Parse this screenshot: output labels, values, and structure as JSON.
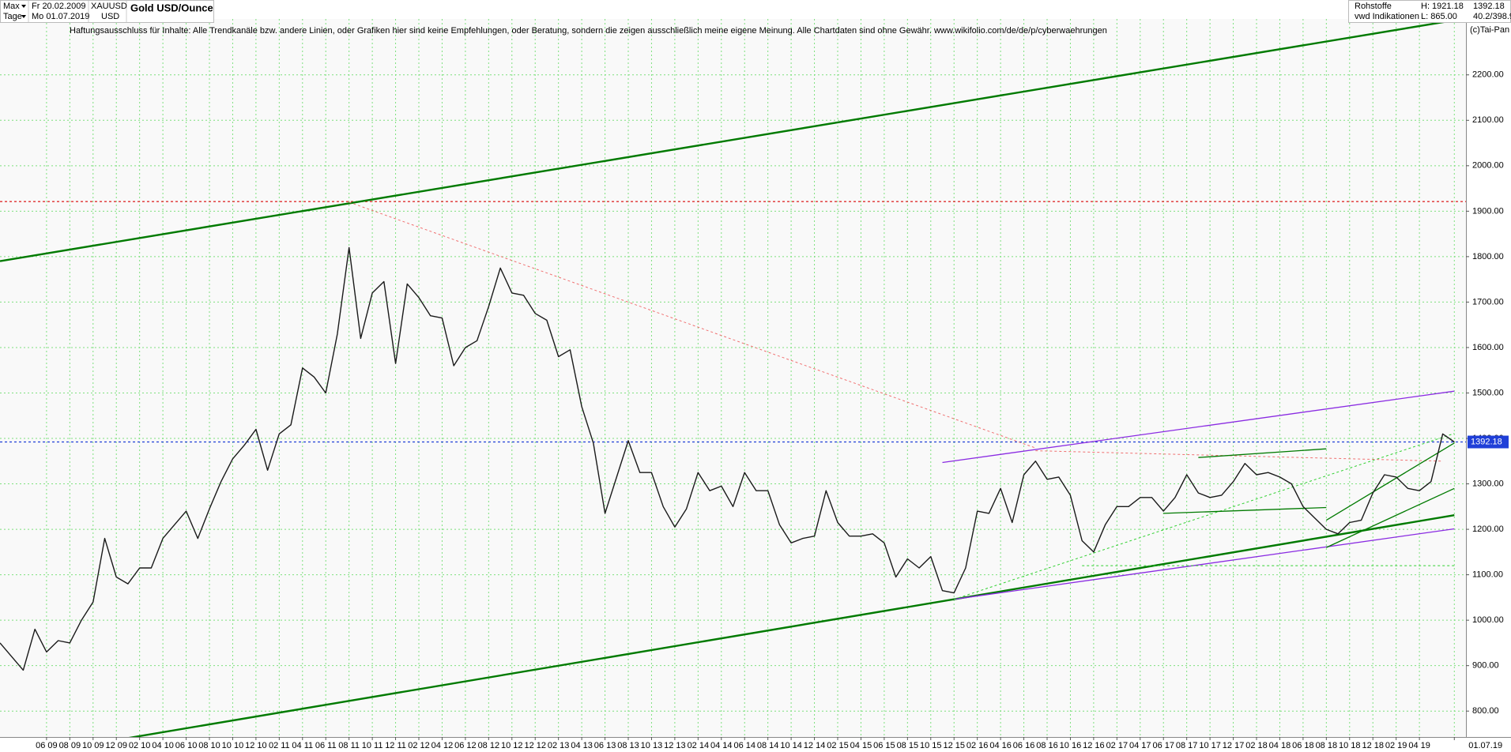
{
  "header": {
    "range": "Max",
    "from": "Fr 20.02.2009",
    "symbol": "XAUUSD",
    "period": "Tage",
    "to": "Mo 01.07.2019",
    "currency": "USD",
    "category": "Rohstoffe",
    "high": "H: 1921.18",
    "source": "vwd Indikationen",
    "low": "L: 865.00",
    "stats": "40.2/398.9",
    "copyright": "(c)Tai-Pan",
    "disclaimer": "Haftungsausschluss für Inhalte: Alle Trendkanäle bzw. andere Linien, oder Grafiken hier sind keine Empfehlungen, oder Beratung, sondern die zeigen ausschließlich meine eigene Meinung. Alle Chartdaten sind ohne Gewähr.  www.wikifolio.com/de/de/p/cyberwaehrungen"
  },
  "chart_data": {
    "type": "line",
    "title": "Gold USD/Ounce",
    "x": [
      "2009-02",
      "2009-03",
      "2009-04",
      "2009-05",
      "2009-06",
      "2009-07",
      "2009-08",
      "2009-09",
      "2009-10",
      "2009-11",
      "2009-12",
      "2010-01",
      "2010-02",
      "2010-03",
      "2010-04",
      "2010-05",
      "2010-06",
      "2010-07",
      "2010-08",
      "2010-09",
      "2010-10",
      "2010-11",
      "2010-12",
      "2011-01",
      "2011-02",
      "2011-03",
      "2011-04",
      "2011-05",
      "2011-06",
      "2011-07",
      "2011-08",
      "2011-09",
      "2011-10",
      "2011-11",
      "2011-12",
      "2012-01",
      "2012-02",
      "2012-03",
      "2012-04",
      "2012-05",
      "2012-06",
      "2012-07",
      "2012-08",
      "2012-09",
      "2012-10",
      "2012-11",
      "2012-12",
      "2013-01",
      "2013-02",
      "2013-03",
      "2013-04",
      "2013-05",
      "2013-06",
      "2013-07",
      "2013-08",
      "2013-09",
      "2013-10",
      "2013-11",
      "2013-12",
      "2014-01",
      "2014-02",
      "2014-03",
      "2014-04",
      "2014-05",
      "2014-06",
      "2014-07",
      "2014-08",
      "2014-09",
      "2014-10",
      "2014-11",
      "2014-12",
      "2015-01",
      "2015-02",
      "2015-03",
      "2015-04",
      "2015-05",
      "2015-06",
      "2015-07",
      "2015-08",
      "2015-09",
      "2015-10",
      "2015-11",
      "2015-12",
      "2016-01",
      "2016-02",
      "2016-03",
      "2016-04",
      "2016-05",
      "2016-06",
      "2016-07",
      "2016-08",
      "2016-09",
      "2016-10",
      "2016-11",
      "2016-12",
      "2017-01",
      "2017-02",
      "2017-03",
      "2017-04",
      "2017-05",
      "2017-06",
      "2017-07",
      "2017-08",
      "2017-09",
      "2017-10",
      "2017-11",
      "2017-12",
      "2018-01",
      "2018-02",
      "2018-03",
      "2018-04",
      "2018-05",
      "2018-06",
      "2018-07",
      "2018-08",
      "2018-09",
      "2018-10",
      "2018-11",
      "2018-12",
      "2019-01",
      "2019-02",
      "2019-03",
      "2019-04",
      "2019-05",
      "2019-06",
      "2019-07"
    ],
    "series": [
      {
        "color": "#1a1a1a",
        "values": [
          950,
          920,
          890,
          980,
          930,
          955,
          950,
          1000,
          1040,
          1180,
          1095,
          1080,
          1115,
          1115,
          1180,
          1210,
          1240,
          1180,
          1245,
          1305,
          1355,
          1385,
          1420,
          1330,
          1410,
          1430,
          1555,
          1535,
          1500,
          1630,
          1820,
          1620,
          1720,
          1745,
          1565,
          1740,
          1710,
          1670,
          1665,
          1560,
          1600,
          1615,
          1690,
          1775,
          1720,
          1715,
          1675,
          1660,
          1580,
          1595,
          1470,
          1390,
          1235,
          1315,
          1395,
          1325,
          1325,
          1250,
          1205,
          1245,
          1325,
          1285,
          1295,
          1250,
          1325,
          1285,
          1285,
          1210,
          1170,
          1180,
          1185,
          1285,
          1215,
          1185,
          1185,
          1190,
          1170,
          1095,
          1135,
          1115,
          1140,
          1065,
          1060,
          1115,
          1240,
          1235,
          1290,
          1215,
          1320,
          1350,
          1310,
          1315,
          1275,
          1175,
          1150,
          1210,
          1250,
          1250,
          1270,
          1270,
          1240,
          1270,
          1320,
          1280,
          1270,
          1275,
          1305,
          1345,
          1320,
          1325,
          1315,
          1300,
          1250,
          1225,
          1200,
          1190,
          1215,
          1220,
          1280,
          1320,
          1315,
          1290,
          1285,
          1305,
          1410,
          1392.18
        ]
      }
    ],
    "reference_lines": [
      {
        "value": 1921.18,
        "color": "#e03030"
      },
      {
        "value": 1392.18,
        "color": "#1f3fd8"
      }
    ],
    "trendlines": [
      {
        "color": "#007a00",
        "style": "thick",
        "x": [
          "2009-02",
          "2019-07"
        ],
        "values": [
          1790,
          2320
        ]
      },
      {
        "color": "#007a00",
        "style": "thick",
        "x": [
          "2009-11",
          "2019-07"
        ],
        "values": [
          732,
          1231
        ]
      },
      {
        "color": "#f07070",
        "style": "dotted",
        "x": [
          "2011-08",
          "2016-07"
        ],
        "values": [
          1920,
          1379
        ]
      },
      {
        "color": "#8a2be2",
        "style": "thin",
        "x": [
          "2015-11",
          "2019-07"
        ],
        "values": [
          1347,
          1504
        ]
      },
      {
        "color": "#8a2be2",
        "style": "thin",
        "x": [
          "2015-12",
          "2019-07"
        ],
        "values": [
          1046,
          1201
        ]
      },
      {
        "color": "#30d030",
        "style": "dotted",
        "x": [
          "2015-12",
          "2019-07"
        ],
        "values": [
          1046,
          1411
        ]
      },
      {
        "color": "#30d030",
        "style": "dotted",
        "x": [
          "2016-11",
          "2019-07"
        ],
        "values": [
          1120,
          1120
        ]
      },
      {
        "color": "#f07070",
        "style": "dotted",
        "x": [
          "2016-07",
          "2019-06"
        ],
        "values": [
          1373,
          1350
        ]
      },
      {
        "color": "#007a00",
        "style": "thin",
        "x": [
          "2018-08",
          "2019-07"
        ],
        "values": [
          1220,
          1390
        ]
      },
      {
        "color": "#007a00",
        "style": "thin",
        "x": [
          "2018-08",
          "2019-07"
        ],
        "values": [
          1160,
          1290
        ]
      },
      {
        "color": "#007a00",
        "style": "thin",
        "x": [
          "2017-09",
          "2018-08"
        ],
        "values": [
          1358,
          1377
        ]
      },
      {
        "color": "#007a00",
        "style": "thin",
        "x": [
          "2017-06",
          "2018-08"
        ],
        "values": [
          1235,
          1248
        ]
      }
    ],
    "xlim": [
      "2009-02",
      "2019-08"
    ],
    "xticks": [
      {
        "value": "2009-06",
        "label": "06 09"
      },
      {
        "value": "2009-08",
        "label": "08 09"
      },
      {
        "value": "2009-10",
        "label": "10 09"
      },
      {
        "value": "2009-12",
        "label": "12 09"
      },
      {
        "value": "2010-02",
        "label": "02 10"
      },
      {
        "value": "2010-04",
        "label": "04 10"
      },
      {
        "value": "2010-06",
        "label": "06 10"
      },
      {
        "value": "2010-08",
        "label": "08 10"
      },
      {
        "value": "2010-10",
        "label": "10 10"
      },
      {
        "value": "2010-12",
        "label": "12 10"
      },
      {
        "value": "2011-02",
        "label": "02 11"
      },
      {
        "value": "2011-04",
        "label": "04 11"
      },
      {
        "value": "2011-06",
        "label": "06 11"
      },
      {
        "value": "2011-08",
        "label": "08 11"
      },
      {
        "value": "2011-10",
        "label": "10 11"
      },
      {
        "value": "2011-12",
        "label": "12 11"
      },
      {
        "value": "2012-02",
        "label": "02 12"
      },
      {
        "value": "2012-04",
        "label": "04 12"
      },
      {
        "value": "2012-06",
        "label": "06 12"
      },
      {
        "value": "2012-08",
        "label": "08 12"
      },
      {
        "value": "2012-10",
        "label": "10 12"
      },
      {
        "value": "2012-12",
        "label": "12 12"
      },
      {
        "value": "2013-02",
        "label": "02 13"
      },
      {
        "value": "2013-04",
        "label": "04 13"
      },
      {
        "value": "2013-06",
        "label": "06 13"
      },
      {
        "value": "2013-08",
        "label": "08 13"
      },
      {
        "value": "2013-10",
        "label": "10 13"
      },
      {
        "value": "2013-12",
        "label": "12 13"
      },
      {
        "value": "2014-02",
        "label": "02 14"
      },
      {
        "value": "2014-04",
        "label": "04 14"
      },
      {
        "value": "2014-06",
        "label": "06 14"
      },
      {
        "value": "2014-08",
        "label": "08 14"
      },
      {
        "value": "2014-10",
        "label": "10 14"
      },
      {
        "value": "2014-12",
        "label": "12 14"
      },
      {
        "value": "2015-02",
        "label": "02 15"
      },
      {
        "value": "2015-04",
        "label": "04 15"
      },
      {
        "value": "2015-06",
        "label": "06 15"
      },
      {
        "value": "2015-08",
        "label": "08 15"
      },
      {
        "value": "2015-10",
        "label": "10 15"
      },
      {
        "value": "2015-12",
        "label": "12 15"
      },
      {
        "value": "2016-02",
        "label": "02 16"
      },
      {
        "value": "2016-04",
        "label": "04 16"
      },
      {
        "value": "2016-06",
        "label": "06 16"
      },
      {
        "value": "2016-08",
        "label": "08 16"
      },
      {
        "value": "2016-10",
        "label": "10 16"
      },
      {
        "value": "2016-12",
        "label": "12 16"
      },
      {
        "value": "2017-02",
        "label": "02 17"
      },
      {
        "value": "2017-04",
        "label": "04 17"
      },
      {
        "value": "2017-06",
        "label": "06 17"
      },
      {
        "value": "2017-08",
        "label": "08 17"
      },
      {
        "value": "2017-10",
        "label": "10 17"
      },
      {
        "value": "2017-12",
        "label": "12 17"
      },
      {
        "value": "2018-02",
        "label": "02 18"
      },
      {
        "value": "2018-04",
        "label": "04 18"
      },
      {
        "value": "2018-06",
        "label": "06 18"
      },
      {
        "value": "2018-08",
        "label": "08 18"
      },
      {
        "value": "2018-10",
        "label": "10 18"
      },
      {
        "value": "2018-12",
        "label": "12 18"
      },
      {
        "value": "2019-02",
        "label": "02 19"
      },
      {
        "value": "2019-04",
        "label": "04 19"
      },
      {
        "value": "2019-07",
        "label": "01.07.19"
      }
    ],
    "ylim": [
      743,
      2323
    ],
    "yticks": [
      {
        "value": 800,
        "label": "800.00"
      },
      {
        "value": 900,
        "label": "900.00"
      },
      {
        "value": 1000,
        "label": "1000.00"
      },
      {
        "value": 1100,
        "label": "1100.00"
      },
      {
        "value": 1200,
        "label": "1200.00"
      },
      {
        "value": 1300,
        "label": "1300.00"
      },
      {
        "value": 1400,
        "label": "1400.00"
      },
      {
        "value": 1500,
        "label": "1500.00"
      },
      {
        "value": 1600,
        "label": "1600.00"
      },
      {
        "value": 1700,
        "label": "1700.00"
      },
      {
        "value": 1800,
        "label": "1800.00"
      },
      {
        "value": 1900,
        "label": "1900.00"
      },
      {
        "value": 2000,
        "label": "2000.00"
      },
      {
        "value": 2100,
        "label": "2100.00"
      },
      {
        "value": 2200,
        "label": "2200.00"
      }
    ],
    "grid": true,
    "grid_color": "#7ee07e",
    "label_box_color": "#1f3fd8"
  }
}
